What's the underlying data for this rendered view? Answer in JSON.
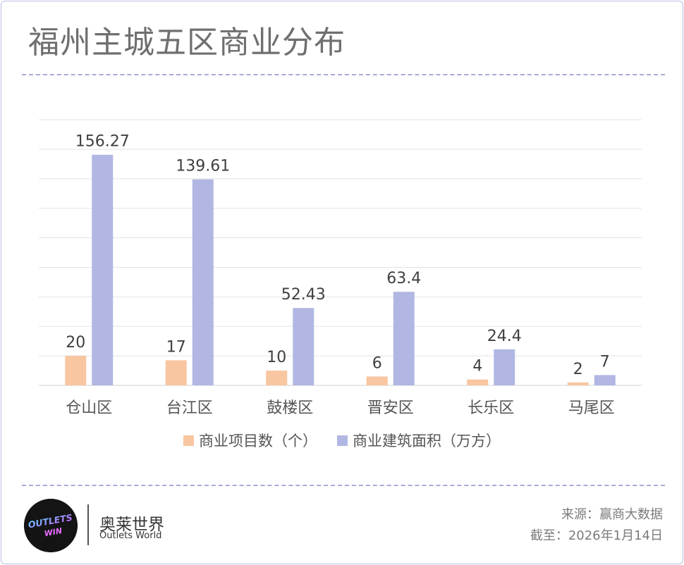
{
  "header": {
    "title": "福州主城五区商业分布"
  },
  "chart_data": {
    "type": "bar",
    "categories": [
      "仓山区",
      "台江区",
      "鼓楼区",
      "晋安区",
      "长乐区",
      "马尾区"
    ],
    "series": [
      {
        "name": "商业项目数（个）",
        "values": [
          20,
          17,
          10,
          6,
          4,
          2
        ],
        "color": "#f8c6a1"
      },
      {
        "name": "商业建筑面积（万方）",
        "values": [
          156.27,
          139.61,
          52.43,
          63.4,
          24.4,
          7
        ],
        "color": "#b1b7e2"
      }
    ],
    "ylim": [
      0,
      180
    ],
    "grid": true,
    "legend": "bottom"
  },
  "footer": {
    "logo_text": "OUTLETS WIN",
    "brand_cn": "奥莱世界",
    "brand_en": "Outlets World",
    "source": "来源：赢商大数据",
    "date": "截至：2026年1月14日"
  }
}
